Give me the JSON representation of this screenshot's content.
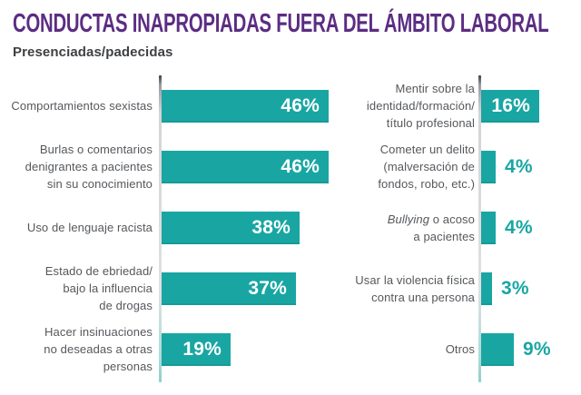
{
  "title": "CONDUCTAS INAPROPIADAS FUERA DEL ÁMBITO LABORAL",
  "subtitle": "Presenciadas/padecidas",
  "colors": {
    "bar_teal": "#19a6a3",
    "title_purple": "#5b2d83",
    "label_gray": "#55585c",
    "value_inside": "#ffffff",
    "value_outside": "#19a6a3"
  },
  "chart_data": {
    "type": "bar",
    "orientation": "horizontal",
    "unit": "percent",
    "legend": "none",
    "grid": false,
    "value_range_implied": [
      0,
      50
    ],
    "groups": [
      {
        "name": "left-column",
        "items": [
          {
            "label": "Comportamientos sexistas",
            "lines": [
              "Comportamientos sexistas"
            ],
            "value": 46,
            "display": "46%",
            "value_position": "inside"
          },
          {
            "label": "Burlas o comentarios denigrantes a pacientes sin su conocimiento",
            "lines": [
              "Burlas o comentarios",
              "denigrantes a pacientes",
              "sin su conocimiento"
            ],
            "value": 46,
            "display": "46%",
            "value_position": "inside"
          },
          {
            "label": "Uso de lenguaje racista",
            "lines": [
              "Uso de lenguaje racista"
            ],
            "value": 38,
            "display": "38%",
            "value_position": "inside"
          },
          {
            "label": "Estado de ebriedad/ bajo la influencia de drogas",
            "lines": [
              "Estado de ebriedad/",
              "bajo la influencia",
              "de drogas"
            ],
            "value": 37,
            "display": "37%",
            "value_position": "inside"
          },
          {
            "label": "Hacer insinuaciones no deseadas a otras personas",
            "lines": [
              "Hacer insinuaciones",
              "no deseadas a otras",
              "personas"
            ],
            "value": 19,
            "display": "19%",
            "value_position": "inside"
          }
        ]
      },
      {
        "name": "right-column",
        "items": [
          {
            "label": "Mentir sobre la identidad/formación/ título profesional",
            "lines": [
              "Mentir sobre la",
              "identidad/formación/",
              "título profesional"
            ],
            "value": 16,
            "display": "16%",
            "value_position": "inside"
          },
          {
            "label": "Cometer un delito (malversación de fondos, robo, etc.)",
            "lines": [
              "Cometer un delito",
              "(malversación de",
              "fondos, robo, etc.)"
            ],
            "value": 4,
            "display": "4%",
            "value_position": "outside"
          },
          {
            "label": "Bullying o acoso a pacientes",
            "italic_lead": "Bullying",
            "lines": [
              " o acoso",
              "a pacientes"
            ],
            "value": 4,
            "display": "4%",
            "value_position": "outside"
          },
          {
            "label": "Usar la violencia física contra una persona",
            "lines": [
              "Usar la violencia física",
              "contra una persona"
            ],
            "value": 3,
            "display": "3%",
            "value_position": "outside"
          },
          {
            "label": "Otros",
            "lines": [
              "Otros"
            ],
            "value": 9,
            "display": "9%",
            "value_position": "outside"
          }
        ]
      }
    ]
  }
}
